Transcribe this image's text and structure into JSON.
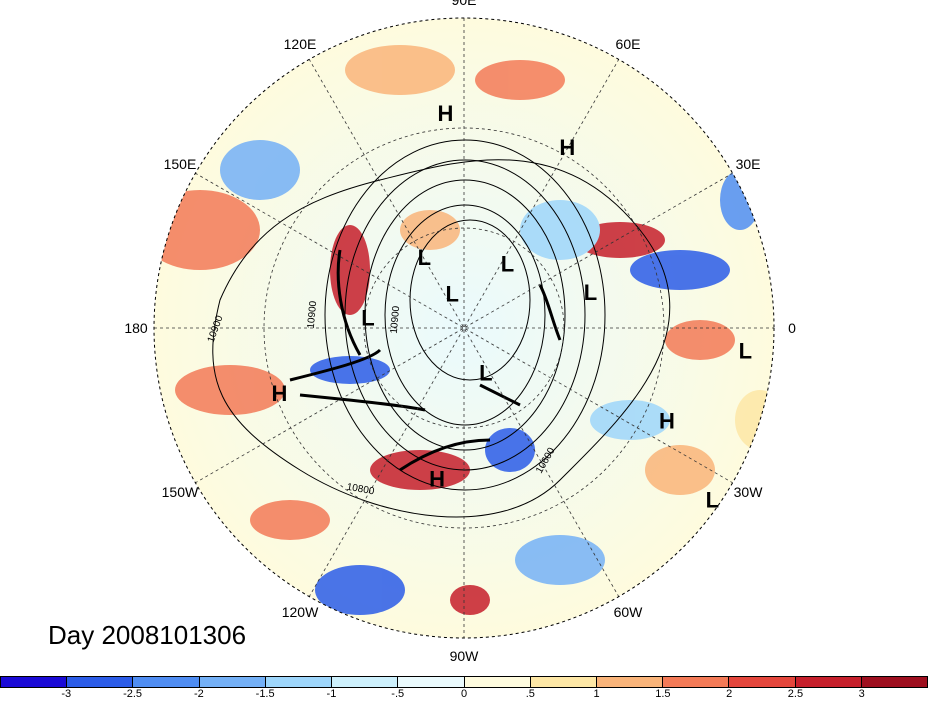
{
  "title": "Day 2008101306",
  "map": {
    "projection": "polar-stereographic-north",
    "longitude_labels": [
      {
        "text": "90E",
        "angle": 0
      },
      {
        "text": "60E",
        "angle": 30
      },
      {
        "text": "30E",
        "angle": 60
      },
      {
        "text": "0",
        "angle": 90
      },
      {
        "text": "30W",
        "angle": 120
      },
      {
        "text": "60W",
        "angle": 150
      },
      {
        "text": "90W",
        "angle": 180
      },
      {
        "text": "120W",
        "angle": 210
      },
      {
        "text": "150W",
        "angle": 240
      },
      {
        "text": "180",
        "angle": 270
      },
      {
        "text": "150E",
        "angle": 300
      },
      {
        "text": "120E",
        "angle": 330
      }
    ],
    "pressure_markers": [
      {
        "type": "H",
        "lon": 95,
        "lat": 28
      },
      {
        "type": "H",
        "lon": 60,
        "lat": 30
      },
      {
        "type": "L",
        "lon": 120,
        "lat": 67
      },
      {
        "type": "L",
        "lon": 55,
        "lat": 68
      },
      {
        "type": "L",
        "lon": 15,
        "lat": 52
      },
      {
        "type": "H",
        "lon": 200,
        "lat": 33
      },
      {
        "type": "L",
        "lon": 175,
        "lat": 62
      },
      {
        "type": "L",
        "lon": 110,
        "lat": 80
      },
      {
        "type": "L",
        "lon": -5,
        "lat": 8
      },
      {
        "type": "L",
        "lon": -65,
        "lat": 75
      },
      {
        "type": "H",
        "lon": -25,
        "lat": 25
      },
      {
        "type": "H",
        "lon": -100,
        "lat": 45
      },
      {
        "type": "L",
        "lon": -35,
        "lat": 2
      }
    ],
    "contour_labels": [
      "10900",
      "10900",
      "10900",
      "10800",
      "10600"
    ]
  },
  "colorbar": {
    "colors": [
      "#1a0ad6",
      "#2b5ce8",
      "#4f8df2",
      "#74b0f6",
      "#9ed6fb",
      "#cdf0fc",
      "#eafafd",
      "#fefbde",
      "#fde7a6",
      "#f9b47a",
      "#f37a57",
      "#e4463c",
      "#c61f2b",
      "#9e0f1f"
    ],
    "tick_labels": [
      "-3",
      "-2.5",
      "-2",
      "-1.5",
      "-1",
      "-.5",
      "0",
      ".5",
      "1",
      "1.5",
      "2",
      "2.5",
      "3"
    ]
  }
}
